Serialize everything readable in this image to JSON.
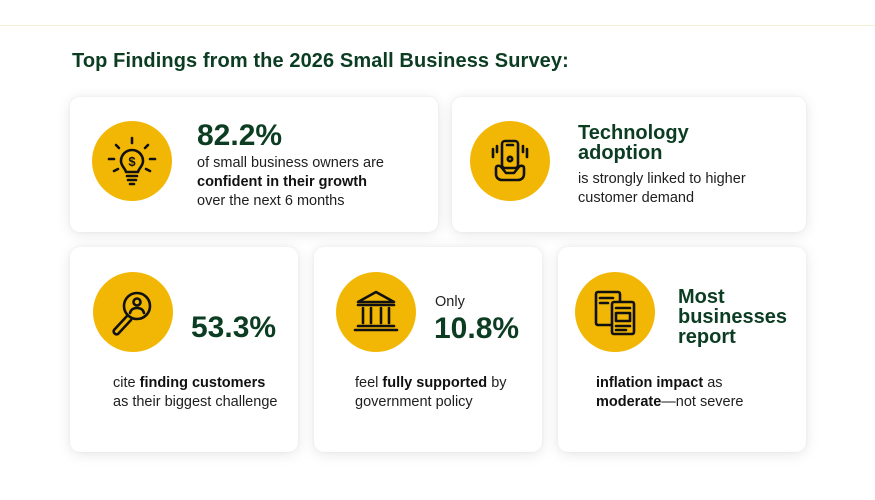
{
  "title": "Top Findings from the 2026 Small Business Survey:",
  "colors": {
    "accent": "#f2b705",
    "heading": "#0c3d22",
    "text": "#1e1e1e"
  },
  "cards": [
    {
      "icon": "lightbulb-dollar-icon",
      "stat": "82.2%",
      "desc_pre": "of small business owners are",
      "desc_bold": "confident in their growth",
      "desc_post": "over the next 6 months"
    },
    {
      "icon": "hand-phone-icon",
      "heading_line1": "Technology",
      "heading_line2": "adoption",
      "desc": "is strongly linked to higher customer demand"
    },
    {
      "icon": "magnifier-person-icon",
      "stat": "53.3%",
      "desc_pre": "cite",
      "desc_bold": "finding customers",
      "desc_post": "as their biggest challenge"
    },
    {
      "icon": "government-building-icon",
      "prefix": "Only",
      "stat": "10.8%",
      "desc_pre": "feel",
      "desc_bold": "fully supported",
      "desc_post": "by government policy"
    },
    {
      "icon": "documents-icon",
      "heading_line1": "Most",
      "heading_line2": "businesses",
      "heading_line3": "report",
      "desc_bold1": "inflation impact",
      "desc_mid": "as",
      "desc_bold2": "moderate",
      "desc_post": "—not severe"
    }
  ]
}
